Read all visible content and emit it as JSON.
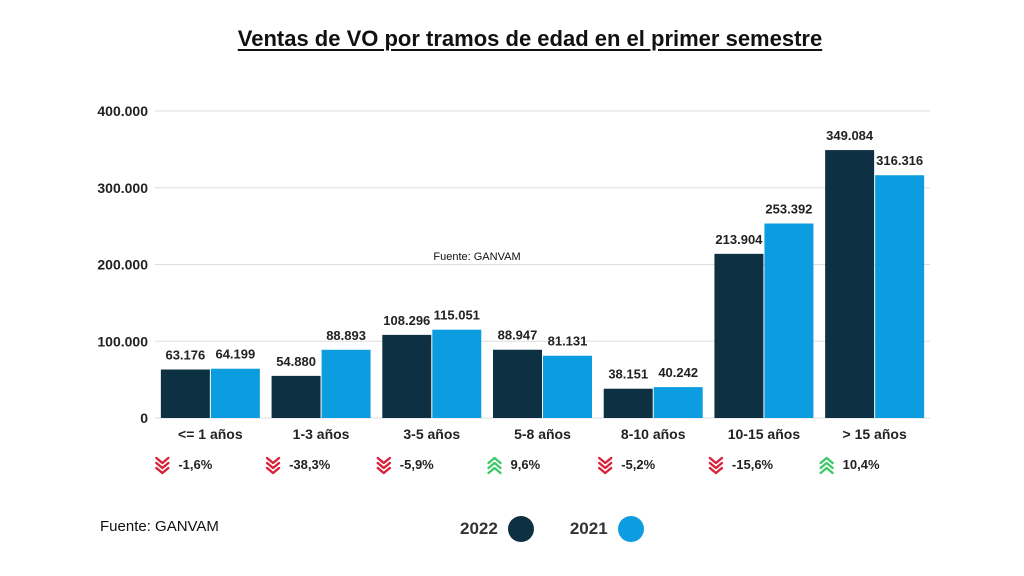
{
  "title": "Ventas de VO por tramos de edad en el primer semestre",
  "source_inner": "Fuente: GANVAM",
  "source_bottom": "Fuente: GANVAM",
  "colors": {
    "series_2022": "#0d3142",
    "series_2021": "#0b9de0",
    "grid": "#dddddd",
    "axis_text": "#222222",
    "up": "#3fc96b",
    "down": "#d8213a"
  },
  "chart_data": {
    "type": "bar",
    "title": "Ventas de VO por tramos de edad en el primer semestre",
    "xlabel": "",
    "ylabel": "",
    "ylim": [
      0,
      400000
    ],
    "yticks": [
      0,
      100000,
      200000,
      300000,
      400000
    ],
    "ytick_labels": [
      "0",
      "100.000",
      "200.000",
      "300.000",
      "400.000"
    ],
    "grid": true,
    "legend_position": "bottom",
    "categories": [
      "<= 1 años",
      "1-3 años",
      "3-5 años",
      "5-8 años",
      "8-10 años",
      "10-15 años",
      "> 15 años"
    ],
    "series": [
      {
        "name": "2022",
        "values": [
          63176,
          54880,
          108296,
          88947,
          38151,
          213904,
          349084
        ],
        "labels": [
          "63.176",
          "54.880",
          "108.296",
          "88.947",
          "38.151",
          "213.904",
          "349.084"
        ]
      },
      {
        "name": "2021",
        "values": [
          64199,
          88893,
          115051,
          81131,
          40242,
          253392,
          316316
        ],
        "labels": [
          "64.199",
          "88.893",
          "115.051",
          "81.131",
          "40.242",
          "253.392",
          "316.316"
        ]
      }
    ],
    "changes": [
      {
        "label": "-1,6%",
        "direction": "down"
      },
      {
        "label": "-38,3%",
        "direction": "down"
      },
      {
        "label": "-5,9%",
        "direction": "down"
      },
      {
        "label": "9,6%",
        "direction": "up"
      },
      {
        "label": "-5,2%",
        "direction": "down"
      },
      {
        "label": "-15,6%",
        "direction": "down"
      },
      {
        "label": "10,4%",
        "direction": "up"
      }
    ]
  },
  "legend": [
    {
      "label": "2022"
    },
    {
      "label": "2021"
    }
  ]
}
